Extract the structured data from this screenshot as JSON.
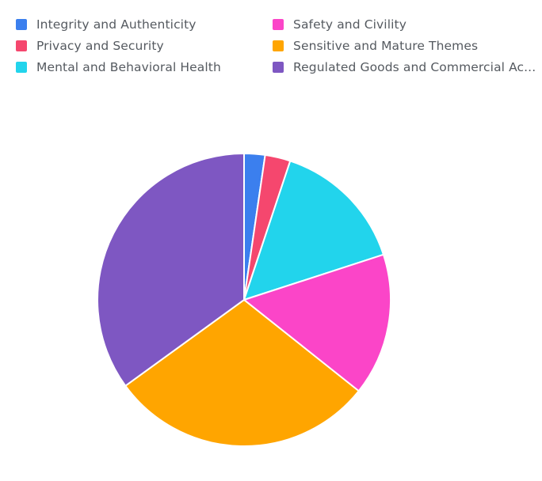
{
  "chart_data": {
    "type": "pie",
    "title": "",
    "legend": "top",
    "slices": [
      {
        "label": "Integrity and Authenticity",
        "value": 2.3,
        "color": "#3b7fee"
      },
      {
        "label": "Privacy and Security",
        "value": 2.8,
        "color": "#f5476e"
      },
      {
        "label": "Mental and Behavioral Health",
        "value": 14.9,
        "color": "#22d4ec"
      },
      {
        "label": "Safety and Civility",
        "value": 15.7,
        "color": "#fb45c8"
      },
      {
        "label": "Sensitive and Mature Themes",
        "value": 29.3,
        "color": "#ffa500"
      },
      {
        "label": "Regulated Goods and Commercial Ac...",
        "value": 35.0,
        "color": "#7e57c2"
      }
    ]
  }
}
